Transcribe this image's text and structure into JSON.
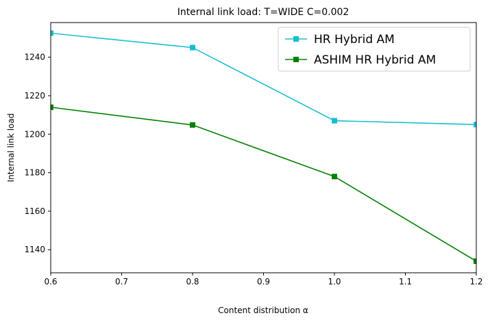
{
  "chart_data": {
    "type": "line",
    "title": "Internal link load: T=WIDE C=0.002",
    "xlabel": "Content distribution α",
    "ylabel": "Internal link load",
    "xlim": [
      0.6,
      1.2
    ],
    "ylim": [
      1128,
      1258
    ],
    "xticks": [
      0.6,
      0.7,
      0.8,
      0.9,
      1.0,
      1.1,
      1.2
    ],
    "xtick_labels": [
      "0.6",
      "0.7",
      "0.8",
      "0.9",
      "1.0",
      "1.1",
      "1.2"
    ],
    "yticks": [
      1140,
      1160,
      1180,
      1200,
      1220,
      1240
    ],
    "ytick_labels": [
      "1140",
      "1160",
      "1180",
      "1200",
      "1220",
      "1240"
    ],
    "grid": false,
    "legend_position": "top-right",
    "series": [
      {
        "name": "HR Hybrid AM",
        "color": "#17becf",
        "marker": "square",
        "x": [
          0.6,
          0.8,
          1.0,
          1.2
        ],
        "y": [
          1252.5,
          1245,
          1207,
          1205
        ]
      },
      {
        "name": "ASHIM HR Hybrid AM",
        "color": "#008000",
        "marker": "square",
        "x": [
          0.6,
          0.8,
          1.0,
          1.2
        ],
        "y": [
          1214,
          1204.8,
          1178,
          1134
        ]
      }
    ]
  }
}
